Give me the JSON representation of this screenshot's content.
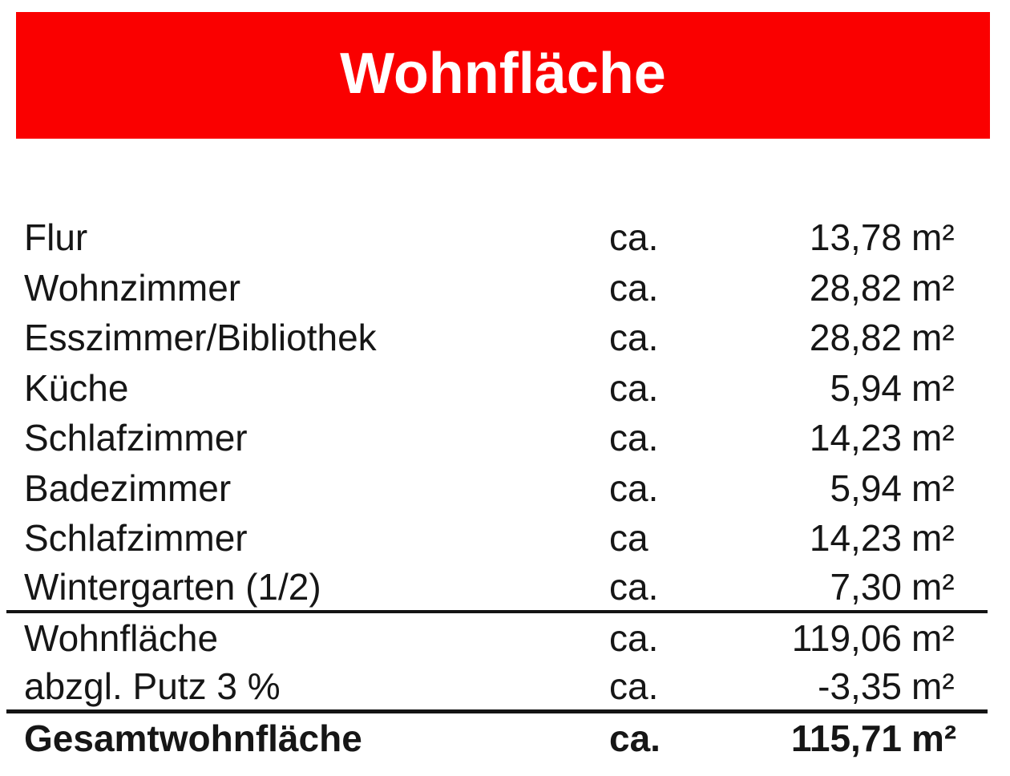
{
  "header": {
    "title": "Wohnfläche"
  },
  "theme": {
    "banner_bg": "#fa0000",
    "banner_text": "#ffffff",
    "body_text": "#161616",
    "rule_color": "#141414"
  },
  "table": {
    "rows": [
      {
        "label": "Flur",
        "approx": "ca.",
        "value": "13,78",
        "unit": "m²",
        "section": "room"
      },
      {
        "label": "Wohnzimmer",
        "approx": "ca.",
        "value": "28,82",
        "unit": "m²",
        "section": "room"
      },
      {
        "label": "Esszimmer/Bibliothek",
        "approx": "ca.",
        "value": "28,82",
        "unit": "m²",
        "section": "room"
      },
      {
        "label": "Küche",
        "approx": "ca.",
        "value": "5,94",
        "unit": "m²",
        "section": "room"
      },
      {
        "label": "Schlafzimmer",
        "approx": "ca.",
        "value": "14,23",
        "unit": "m²",
        "section": "room"
      },
      {
        "label": "Badezimmer",
        "approx": "ca.",
        "value": "5,94",
        "unit": "m²",
        "section": "room"
      },
      {
        "label": "Schlafzimmer",
        "approx": "ca",
        "value": "14,23",
        "unit": "m²",
        "section": "room"
      },
      {
        "label": "Wintergarten (1/2)",
        "approx": "ca.",
        "value": "7,30",
        "unit": "m²",
        "section": "room",
        "rule_after": "thin"
      },
      {
        "label": "Wohnfläche",
        "approx": "ca.",
        "value": "119,06",
        "unit": "m²",
        "section": "subtotal"
      },
      {
        "label": "abzgl. Putz 3 %",
        "approx": "ca.",
        "value": "-3,35",
        "unit": "m²",
        "section": "deduction",
        "rule_after": "thick"
      },
      {
        "label": "Gesamtwohnfläche",
        "approx": "ca.",
        "value": "115,71",
        "unit": "m²",
        "section": "total",
        "bold": true
      }
    ]
  }
}
